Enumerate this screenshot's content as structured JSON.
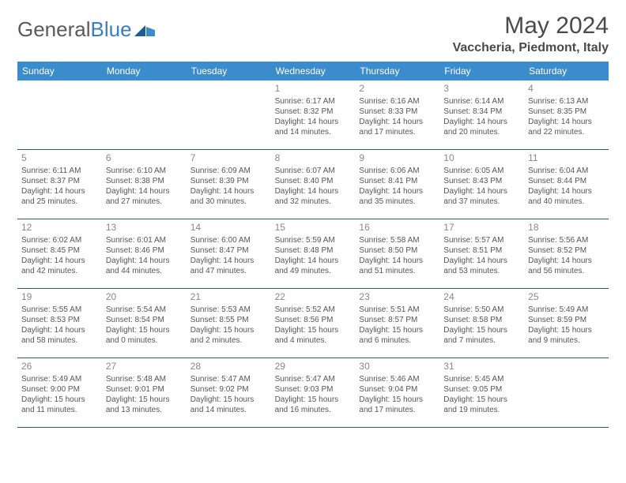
{
  "brand": {
    "part1": "General",
    "part2": "Blue"
  },
  "title": "May 2024",
  "location": "Vaccheria, Piedmont, Italy",
  "colors": {
    "header_bg": "#3a8ccc",
    "header_text": "#ffffff",
    "border": "#2a5a8a",
    "logo_gray": "#5a5a5a",
    "logo_blue": "#3a7ec1",
    "title_color": "#4a4a4a",
    "cell_text": "#555555",
    "daynum_color": "#888888",
    "background": "#ffffff"
  },
  "layout": {
    "columns": 7,
    "rows": 5,
    "title_fontsize": 30,
    "location_fontsize": 16,
    "header_fontsize": 12,
    "cell_fontsize": 10,
    "daynum_fontsize": 12
  },
  "week_headers": [
    "Sunday",
    "Monday",
    "Tuesday",
    "Wednesday",
    "Thursday",
    "Friday",
    "Saturday"
  ],
  "leading_blanks": 3,
  "days": [
    {
      "n": 1,
      "sunrise": "6:17 AM",
      "sunset": "8:32 PM",
      "daylight": "14 hours and 14 minutes."
    },
    {
      "n": 2,
      "sunrise": "6:16 AM",
      "sunset": "8:33 PM",
      "daylight": "14 hours and 17 minutes."
    },
    {
      "n": 3,
      "sunrise": "6:14 AM",
      "sunset": "8:34 PM",
      "daylight": "14 hours and 20 minutes."
    },
    {
      "n": 4,
      "sunrise": "6:13 AM",
      "sunset": "8:35 PM",
      "daylight": "14 hours and 22 minutes."
    },
    {
      "n": 5,
      "sunrise": "6:11 AM",
      "sunset": "8:37 PM",
      "daylight": "14 hours and 25 minutes."
    },
    {
      "n": 6,
      "sunrise": "6:10 AM",
      "sunset": "8:38 PM",
      "daylight": "14 hours and 27 minutes."
    },
    {
      "n": 7,
      "sunrise": "6:09 AM",
      "sunset": "8:39 PM",
      "daylight": "14 hours and 30 minutes."
    },
    {
      "n": 8,
      "sunrise": "6:07 AM",
      "sunset": "8:40 PM",
      "daylight": "14 hours and 32 minutes."
    },
    {
      "n": 9,
      "sunrise": "6:06 AM",
      "sunset": "8:41 PM",
      "daylight": "14 hours and 35 minutes."
    },
    {
      "n": 10,
      "sunrise": "6:05 AM",
      "sunset": "8:43 PM",
      "daylight": "14 hours and 37 minutes."
    },
    {
      "n": 11,
      "sunrise": "6:04 AM",
      "sunset": "8:44 PM",
      "daylight": "14 hours and 40 minutes."
    },
    {
      "n": 12,
      "sunrise": "6:02 AM",
      "sunset": "8:45 PM",
      "daylight": "14 hours and 42 minutes."
    },
    {
      "n": 13,
      "sunrise": "6:01 AM",
      "sunset": "8:46 PM",
      "daylight": "14 hours and 44 minutes."
    },
    {
      "n": 14,
      "sunrise": "6:00 AM",
      "sunset": "8:47 PM",
      "daylight": "14 hours and 47 minutes."
    },
    {
      "n": 15,
      "sunrise": "5:59 AM",
      "sunset": "8:48 PM",
      "daylight": "14 hours and 49 minutes."
    },
    {
      "n": 16,
      "sunrise": "5:58 AM",
      "sunset": "8:50 PM",
      "daylight": "14 hours and 51 minutes."
    },
    {
      "n": 17,
      "sunrise": "5:57 AM",
      "sunset": "8:51 PM",
      "daylight": "14 hours and 53 minutes."
    },
    {
      "n": 18,
      "sunrise": "5:56 AM",
      "sunset": "8:52 PM",
      "daylight": "14 hours and 56 minutes."
    },
    {
      "n": 19,
      "sunrise": "5:55 AM",
      "sunset": "8:53 PM",
      "daylight": "14 hours and 58 minutes."
    },
    {
      "n": 20,
      "sunrise": "5:54 AM",
      "sunset": "8:54 PM",
      "daylight": "15 hours and 0 minutes."
    },
    {
      "n": 21,
      "sunrise": "5:53 AM",
      "sunset": "8:55 PM",
      "daylight": "15 hours and 2 minutes."
    },
    {
      "n": 22,
      "sunrise": "5:52 AM",
      "sunset": "8:56 PM",
      "daylight": "15 hours and 4 minutes."
    },
    {
      "n": 23,
      "sunrise": "5:51 AM",
      "sunset": "8:57 PM",
      "daylight": "15 hours and 6 minutes."
    },
    {
      "n": 24,
      "sunrise": "5:50 AM",
      "sunset": "8:58 PM",
      "daylight": "15 hours and 7 minutes."
    },
    {
      "n": 25,
      "sunrise": "5:49 AM",
      "sunset": "8:59 PM",
      "daylight": "15 hours and 9 minutes."
    },
    {
      "n": 26,
      "sunrise": "5:49 AM",
      "sunset": "9:00 PM",
      "daylight": "15 hours and 11 minutes."
    },
    {
      "n": 27,
      "sunrise": "5:48 AM",
      "sunset": "9:01 PM",
      "daylight": "15 hours and 13 minutes."
    },
    {
      "n": 28,
      "sunrise": "5:47 AM",
      "sunset": "9:02 PM",
      "daylight": "15 hours and 14 minutes."
    },
    {
      "n": 29,
      "sunrise": "5:47 AM",
      "sunset": "9:03 PM",
      "daylight": "15 hours and 16 minutes."
    },
    {
      "n": 30,
      "sunrise": "5:46 AM",
      "sunset": "9:04 PM",
      "daylight": "15 hours and 17 minutes."
    },
    {
      "n": 31,
      "sunrise": "5:45 AM",
      "sunset": "9:05 PM",
      "daylight": "15 hours and 19 minutes."
    }
  ],
  "labels": {
    "sunrise": "Sunrise:",
    "sunset": "Sunset:",
    "daylight": "Daylight:"
  }
}
